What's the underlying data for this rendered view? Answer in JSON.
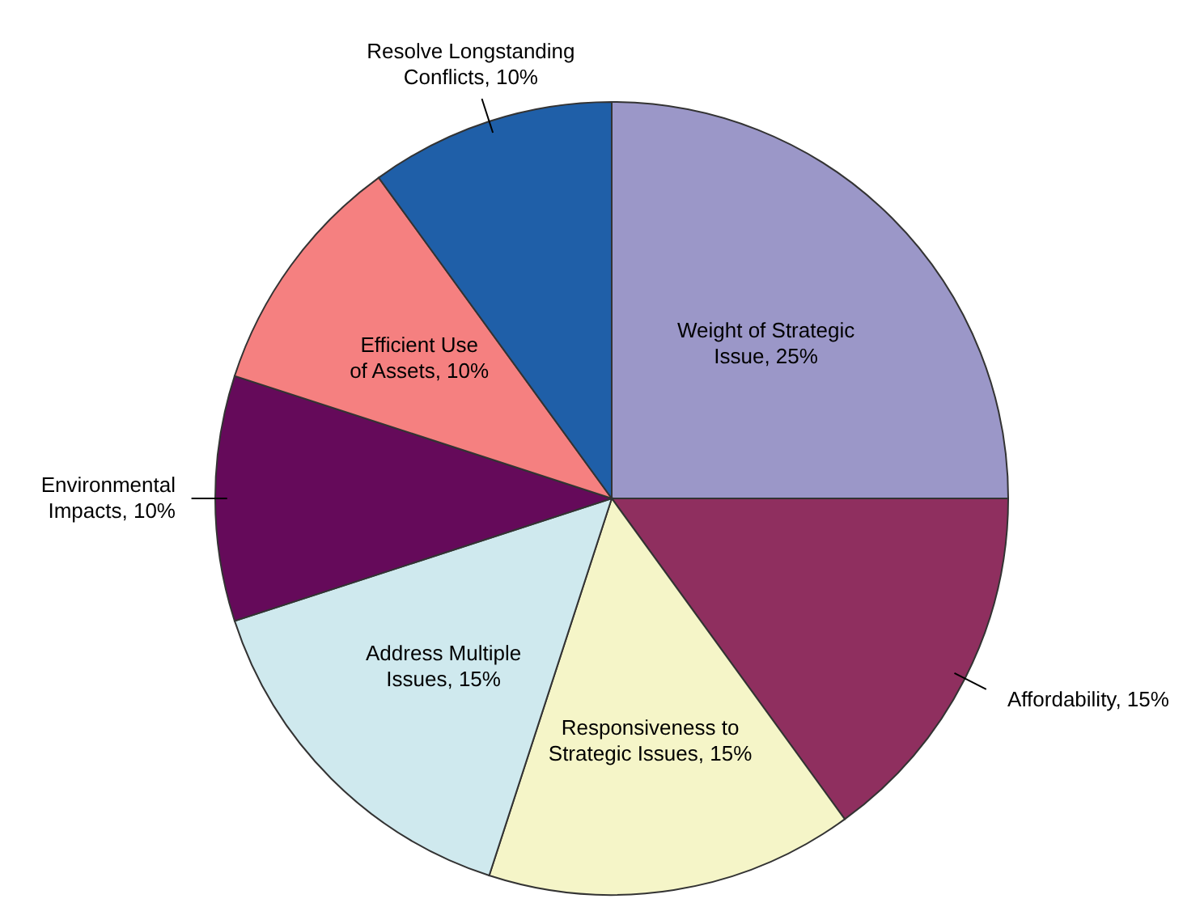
{
  "chart_data": {
    "type": "pie",
    "categories": [
      "Weight of Strategic Issue",
      "Affordability",
      "Responsiveness to Strategic Issues",
      "Address Multiple Issues",
      "Environmental Impacts",
      "Efficient Use of Assets",
      "Resolve Longstanding Conflicts"
    ],
    "values": [
      25,
      15,
      15,
      15,
      10,
      10,
      10
    ],
    "value_labels": [
      "25%",
      "15%",
      "15%",
      "15%",
      "10%",
      "10%",
      "10%"
    ],
    "colors": [
      "#9b97c8",
      "#8f2f5f",
      "#f5f5c8",
      "#cfe9ee",
      "#650a5a",
      "#f58080",
      "#1f5fa8"
    ]
  }
}
